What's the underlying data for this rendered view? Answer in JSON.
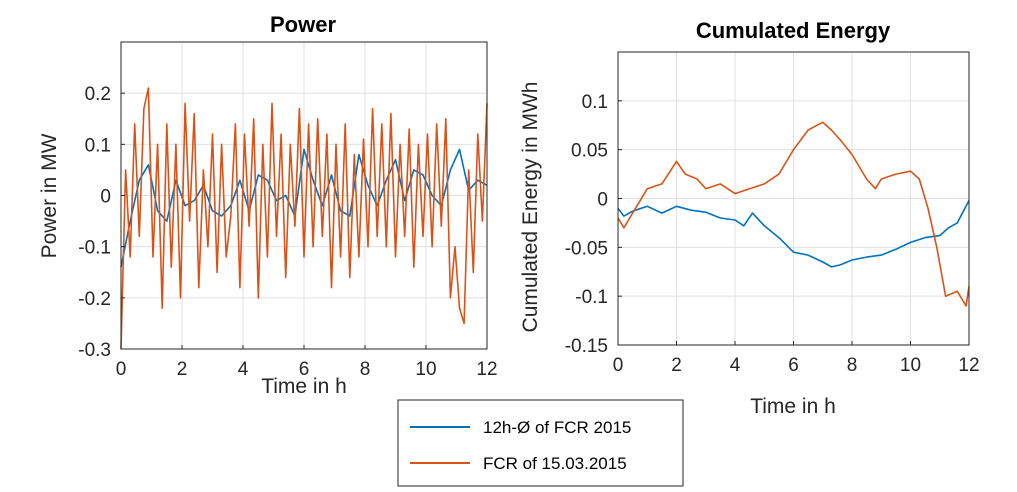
{
  "colors": {
    "series1": "#0072BD",
    "series2": "#D95319",
    "grid": "#e0e0e0",
    "axis": "#262626"
  },
  "legend": {
    "placement": "bottom-center",
    "entries": [
      "12h-Ø of FCR 2015",
      "FCR of 15.03.2015"
    ]
  },
  "chart_data": [
    {
      "type": "line",
      "title": "Power",
      "xlabel": "Time in h",
      "ylabel": "Power in MW",
      "xlim": [
        0,
        12
      ],
      "ylim": [
        -0.3,
        0.3
      ],
      "xticks": [
        0,
        2,
        4,
        6,
        8,
        10,
        12
      ],
      "yticks": [
        -0.3,
        -0.2,
        -0.1,
        0,
        0.1,
        0.2
      ],
      "ytick_labels": [
        "-0.3",
        "-0.2",
        "-0.1",
        "0",
        "0.1",
        "0.2"
      ],
      "grid": true,
      "series": [
        {
          "name": "12h-Ø of FCR 2015",
          "x": [
            0,
            0.3,
            0.6,
            0.9,
            1.2,
            1.5,
            1.8,
            2.1,
            2.4,
            2.7,
            3.0,
            3.3,
            3.6,
            3.9,
            4.2,
            4.5,
            4.8,
            5.1,
            5.4,
            5.7,
            6.0,
            6.3,
            6.6,
            6.9,
            7.2,
            7.5,
            7.8,
            8.1,
            8.4,
            8.7,
            9.0,
            9.3,
            9.6,
            9.9,
            10.2,
            10.5,
            10.8,
            11.1,
            11.4,
            11.7,
            12.0
          ],
          "y": [
            -0.14,
            -0.05,
            0.03,
            0.06,
            -0.03,
            -0.05,
            0.03,
            -0.02,
            -0.01,
            0.02,
            -0.03,
            -0.04,
            -0.02,
            0.03,
            -0.03,
            0.04,
            0.03,
            -0.01,
            0.0,
            -0.04,
            0.09,
            0.03,
            -0.02,
            0.04,
            -0.03,
            -0.04,
            0.08,
            0.02,
            -0.02,
            0.03,
            0.07,
            -0.01,
            0.05,
            0.04,
            0.0,
            -0.02,
            0.05,
            0.09,
            0.01,
            0.03,
            0.02
          ]
        },
        {
          "name": "FCR of 15.03.2015",
          "x": [
            0,
            0.15,
            0.3,
            0.45,
            0.6,
            0.75,
            0.9,
            1.05,
            1.2,
            1.35,
            1.5,
            1.65,
            1.8,
            1.95,
            2.1,
            2.25,
            2.4,
            2.55,
            2.7,
            2.85,
            3.0,
            3.15,
            3.3,
            3.45,
            3.6,
            3.75,
            3.9,
            4.05,
            4.2,
            4.35,
            4.5,
            4.65,
            4.8,
            4.95,
            5.1,
            5.25,
            5.4,
            5.55,
            5.7,
            5.85,
            6.0,
            6.15,
            6.3,
            6.45,
            6.6,
            6.75,
            6.9,
            7.05,
            7.2,
            7.35,
            7.5,
            7.65,
            7.8,
            7.95,
            8.1,
            8.25,
            8.4,
            8.55,
            8.7,
            8.85,
            9.0,
            9.15,
            9.3,
            9.45,
            9.6,
            9.75,
            9.9,
            10.05,
            10.2,
            10.35,
            10.5,
            10.65,
            10.8,
            10.95,
            11.1,
            11.25,
            11.4,
            11.55,
            11.7,
            11.85,
            12.0
          ],
          "y": [
            -0.3,
            0.05,
            -0.12,
            0.14,
            -0.08,
            0.17,
            0.21,
            -0.12,
            0.1,
            -0.22,
            0.14,
            -0.14,
            0.1,
            -0.2,
            0.18,
            -0.05,
            0.16,
            -0.18,
            0.05,
            -0.1,
            0.12,
            -0.15,
            0.1,
            -0.12,
            -0.04,
            0.14,
            -0.18,
            0.12,
            -0.06,
            0.15,
            -0.2,
            0.1,
            -0.12,
            0.18,
            -0.08,
            0.12,
            -0.16,
            0.1,
            -0.06,
            0.17,
            -0.12,
            0.14,
            -0.1,
            0.15,
            -0.08,
            0.12,
            -0.18,
            0.1,
            -0.12,
            0.14,
            -0.16,
            0.08,
            -0.12,
            0.11,
            -0.1,
            0.17,
            -0.08,
            0.14,
            -0.1,
            0.16,
            -0.12,
            0.1,
            -0.08,
            0.13,
            -0.14,
            0.1,
            -0.08,
            0.12,
            -0.1,
            0.14,
            -0.06,
            0.15,
            -0.2,
            -0.1,
            -0.22,
            -0.25,
            0.05,
            -0.15,
            0.12,
            -0.05,
            0.18
          ]
        }
      ]
    },
    {
      "type": "line",
      "title": "Cumulated Energy",
      "xlabel": "Time in h",
      "ylabel": "Cumulated Energy in MWh",
      "xlim": [
        0,
        12
      ],
      "ylim": [
        -0.15,
        0.15
      ],
      "xticks": [
        0,
        2,
        4,
        6,
        8,
        10,
        12
      ],
      "yticks": [
        -0.15,
        -0.1,
        -0.05,
        0,
        0.05,
        0.1
      ],
      "ytick_labels": [
        "-0.15",
        "-0.1",
        "-0.05",
        "0",
        "0.05",
        "0.1"
      ],
      "grid": true,
      "series": [
        {
          "name": "12h-Ø of FCR 2015",
          "x": [
            0,
            0.2,
            0.5,
            1.0,
            1.5,
            2.0,
            2.5,
            3.0,
            3.5,
            4.0,
            4.3,
            4.6,
            5.0,
            5.5,
            6.0,
            6.5,
            7.0,
            7.3,
            7.6,
            8.0,
            8.5,
            9.0,
            9.5,
            10.0,
            10.5,
            11.0,
            11.3,
            11.6,
            12.0
          ],
          "y": [
            -0.01,
            -0.018,
            -0.013,
            -0.008,
            -0.015,
            -0.008,
            -0.012,
            -0.014,
            -0.02,
            -0.022,
            -0.028,
            -0.015,
            -0.028,
            -0.04,
            -0.055,
            -0.058,
            -0.065,
            -0.07,
            -0.068,
            -0.063,
            -0.06,
            -0.058,
            -0.052,
            -0.045,
            -0.04,
            -0.038,
            -0.03,
            -0.025,
            -0.002
          ]
        },
        {
          "name": "FCR of 15.03.2015",
          "x": [
            0,
            0.2,
            0.5,
            1.0,
            1.5,
            2.0,
            2.3,
            2.7,
            3.0,
            3.5,
            4.0,
            4.5,
            5.0,
            5.5,
            6.0,
            6.5,
            6.8,
            7.0,
            7.3,
            7.6,
            8.0,
            8.5,
            8.8,
            9.0,
            9.5,
            10.0,
            10.3,
            10.6,
            10.9,
            11.2,
            11.6,
            11.9,
            12.0
          ],
          "y": [
            -0.02,
            -0.03,
            -0.015,
            0.01,
            0.015,
            0.038,
            0.025,
            0.02,
            0.01,
            0.015,
            0.005,
            0.01,
            0.015,
            0.025,
            0.05,
            0.07,
            0.075,
            0.078,
            0.07,
            0.06,
            0.045,
            0.02,
            0.01,
            0.02,
            0.025,
            0.028,
            0.02,
            -0.01,
            -0.05,
            -0.1,
            -0.095,
            -0.11,
            -0.09
          ]
        }
      ]
    }
  ]
}
